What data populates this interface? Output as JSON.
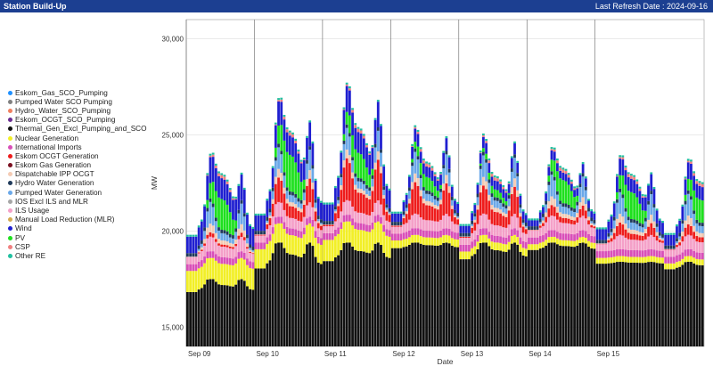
{
  "window": {
    "title": "Station Build-Up",
    "refresh": "Last Refresh Date : 2024-09-16"
  },
  "legend": [
    {
      "name": "Eskom_Gas_SCO_Pumping",
      "color": "#1e90ff"
    },
    {
      "name": "Pumped Water SCO Pumping",
      "color": "#808080"
    },
    {
      "name": "Hydro_Water_SCO_Pumping",
      "color": "#f08060"
    },
    {
      "name": "Eskom_OCGT_SCO_Pumping",
      "color": "#6a2c91"
    },
    {
      "name": "Thermal_Gen_Excl_Pumping_and_SCO",
      "color": "#111111"
    },
    {
      "name": "Nuclear Generation",
      "color": "#f2ef27"
    },
    {
      "name": "International Imports",
      "color": "#d94fb8"
    },
    {
      "name": "Eskom OCGT Generation",
      "color": "#ee1c1c"
    },
    {
      "name": "Eskom Gas Generation",
      "color": "#7a1020"
    },
    {
      "name": "Dispatchable IPP OCGT",
      "color": "#f4cbb4"
    },
    {
      "name": "Hydro Water Generation",
      "color": "#1f3a5a"
    },
    {
      "name": "Pumped Water Generation",
      "color": "#6aa8e8"
    },
    {
      "name": "IOS Excl ILS and MLR",
      "color": "#a6a6a6"
    },
    {
      "name": "ILS Usage",
      "color": "#f4a0c8"
    },
    {
      "name": "Manual Load Reduction (MLR)",
      "color": "#d4aa50"
    },
    {
      "name": "Wind",
      "color": "#1f1fd0"
    },
    {
      "name": "PV",
      "color": "#1ee01e"
    },
    {
      "name": "CSP",
      "color": "#f08080"
    },
    {
      "name": "Other RE",
      "color": "#20c0a0"
    }
  ],
  "chart_data": {
    "type": "area",
    "title": "Station Build-Up",
    "xlabel": "Date",
    "ylabel": "MW",
    "ylim": [
      14000,
      31000
    ],
    "yticks": [
      "15,000",
      "20,000",
      "25,000",
      "30,000"
    ],
    "ytick_values": [
      15000,
      20000,
      25000,
      30000
    ],
    "xticks": [
      "Sep 09",
      "Sep 10",
      "Sep 11",
      "Sep 12",
      "Sep 13",
      "Sep 14",
      "Sep 15"
    ],
    "hours_per_day": 24,
    "day_count": 7.6,
    "days": [
      {
        "base": 17.5,
        "peak": 21.6,
        "low": 16.8,
        "ocgt": 0.25,
        "pv": 1.6,
        "wind": 1.4,
        "nuc": 1.1
      },
      {
        "base": 19.4,
        "peak": 22.4,
        "low": 18.0,
        "ocgt": 1.4,
        "pv": 1.9,
        "wind": 1.3,
        "nuc": 1.0
      },
      {
        "base": 19.4,
        "peak": 22.2,
        "low": 18.4,
        "ocgt": 2.4,
        "pv": 1.3,
        "wind": 1.4,
        "nuc": 1.1
      },
      {
        "base": 19.4,
        "peak": 22.1,
        "low": 19.1,
        "ocgt": 1.8,
        "pv": 0.7,
        "wind": 0.7,
        "nuc": 0.4
      },
      {
        "base": 19.4,
        "peak": 21.9,
        "low": 18.5,
        "ocgt": 1.6,
        "pv": 0.4,
        "wind": 0.6,
        "nuc": 0.4
      },
      {
        "base": 19.4,
        "peak": 22.6,
        "low": 19.0,
        "ocgt": 0.6,
        "pv": 1.2,
        "wind": 0.5,
        "nuc": 0.3
      },
      {
        "base": 18.4,
        "peak": 21.5,
        "low": 18.3,
        "ocgt": 0.7,
        "pv": 1.4,
        "wind": 0.9,
        "nuc": 0.3
      },
      {
        "base": 18.4,
        "peak": 21.0,
        "low": 18.0,
        "ocgt": 0.6,
        "pv": 1.2,
        "wind": 0.9,
        "nuc": 0.3
      }
    ]
  }
}
